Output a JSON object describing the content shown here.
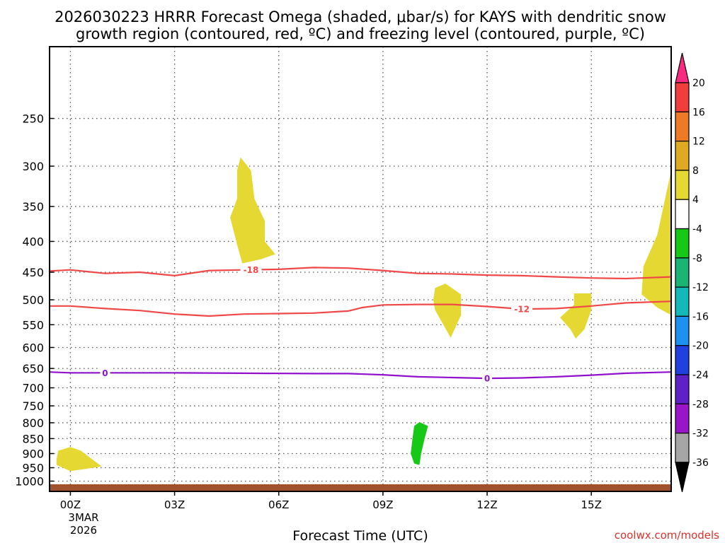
{
  "chart_data": {
    "type": "time-height-contour",
    "title_line1": "2026030223 HRRR Forecast Omega (shaded, μbar/s) for KAYS with dendritic snow",
    "title_line2": "growth region (contoured, red, ºC) and freezing level (contoured, purple, ºC)",
    "xlabel": "Forecast Time (UTC)",
    "x_range_hours": [
      -0.6,
      17.3
    ],
    "x_ticks": [
      {
        "hour": 0,
        "label": "00Z"
      },
      {
        "hour": 3,
        "label": "03Z"
      },
      {
        "hour": 6,
        "label": "06Z"
      },
      {
        "hour": 9,
        "label": "09Z"
      },
      {
        "hour": 12,
        "label": "12Z"
      },
      {
        "hour": 15,
        "label": "15Z"
      }
    ],
    "date_line1": "3MAR",
    "date_line2": "2026",
    "y_axis": "pressure (hPa), log scale",
    "y_range": [
      190,
      1040
    ],
    "y_ticks": [
      250,
      300,
      350,
      400,
      450,
      500,
      550,
      600,
      650,
      700,
      750,
      800,
      850,
      900,
      950,
      1000
    ],
    "watermark": "coolwx.com/models",
    "colorbar": {
      "labels": [
        "20",
        "16",
        "12",
        "8",
        "4",
        "-4",
        "-8",
        "-12",
        "-16",
        "-20",
        "-24",
        "-28",
        "-32",
        "-36"
      ],
      "colors": [
        "#f82a82",
        "#f23d3d",
        "#ed7a25",
        "#ddaa22",
        "#e6d832",
        "#ffffff",
        "#17c817",
        "#1ab574",
        "#14b8b8",
        "#1e90f0",
        "#2040e0",
        "#6020c8",
        "#9a14c8",
        "#a6a6a6",
        "#000000"
      ]
    },
    "series": [
      {
        "name": "-18 C (dendritic growth top)",
        "color": "#f04848",
        "label": "-18",
        "label_hour": 5.2,
        "points": [
          [
            -0.6,
            448
          ],
          [
            0,
            446
          ],
          [
            1,
            452
          ],
          [
            2,
            450
          ],
          [
            3,
            456
          ],
          [
            4,
            447
          ],
          [
            5,
            446
          ],
          [
            6,
            445
          ],
          [
            7,
            442
          ],
          [
            8,
            443
          ],
          [
            9,
            447
          ],
          [
            10,
            452
          ],
          [
            11,
            453
          ],
          [
            12,
            455
          ],
          [
            13,
            456
          ],
          [
            14,
            458
          ],
          [
            15,
            460
          ],
          [
            16,
            461
          ],
          [
            17.3,
            458
          ]
        ]
      },
      {
        "name": "-12 C (dendritic growth bottom)",
        "color": "#f04848",
        "label": "-12",
        "label_hour": 13.0,
        "points": [
          [
            -0.6,
            512
          ],
          [
            0,
            512
          ],
          [
            1,
            517
          ],
          [
            2,
            521
          ],
          [
            3,
            528
          ],
          [
            4,
            532
          ],
          [
            5,
            528
          ],
          [
            6,
            527
          ],
          [
            7,
            526
          ],
          [
            8,
            522
          ],
          [
            8.4,
            515
          ],
          [
            9,
            510
          ],
          [
            10,
            509
          ],
          [
            11,
            509
          ],
          [
            12,
            513
          ],
          [
            13,
            518
          ],
          [
            14,
            517
          ],
          [
            15,
            512
          ],
          [
            16,
            506
          ],
          [
            17.3,
            503
          ]
        ]
      },
      {
        "name": "0 C (freezing level)",
        "color": "#9010cc",
        "labels_hours": [
          1.0,
          12.0
        ],
        "label": "0",
        "points": [
          [
            -0.6,
            659
          ],
          [
            0,
            661
          ],
          [
            1,
            661
          ],
          [
            3,
            661
          ],
          [
            5,
            662
          ],
          [
            7,
            663
          ],
          [
            8,
            663
          ],
          [
            9,
            666
          ],
          [
            10,
            671
          ],
          [
            11,
            673
          ],
          [
            12,
            675
          ],
          [
            13,
            674
          ],
          [
            14,
            671
          ],
          [
            15,
            667
          ],
          [
            16,
            662
          ],
          [
            17.3,
            659
          ]
        ]
      }
    ],
    "shaded_regions": [
      {
        "band": "4 to 8",
        "color": "#e6d832",
        "polygon": [
          [
            4.9,
            290
          ],
          [
            5.2,
            305
          ],
          [
            5.3,
            340
          ],
          [
            5.6,
            370
          ],
          [
            5.6,
            400
          ],
          [
            5.9,
            420
          ],
          [
            5.5,
            428
          ],
          [
            4.95,
            435
          ],
          [
            4.8,
            405
          ],
          [
            4.6,
            365
          ],
          [
            4.8,
            340
          ],
          [
            4.8,
            305
          ]
        ]
      },
      {
        "band": "4 to 8",
        "color": "#e6d832",
        "polygon": [
          [
            10.5,
            478
          ],
          [
            10.8,
            470
          ],
          [
            11.25,
            490
          ],
          [
            11.25,
            530
          ],
          [
            10.95,
            578
          ],
          [
            10.5,
            520
          ],
          [
            10.45,
            500
          ]
        ]
      },
      {
        "band": "4 to 8",
        "color": "#e6d832",
        "polygon": [
          [
            14.5,
            488
          ],
          [
            15.0,
            488
          ],
          [
            15.0,
            520
          ],
          [
            14.8,
            560
          ],
          [
            14.55,
            580
          ],
          [
            14.4,
            560
          ],
          [
            14.1,
            535
          ],
          [
            14.5,
            510
          ]
        ]
      },
      {
        "band": "4 to 8",
        "color": "#e6d832",
        "polygon": [
          [
            17.3,
            305
          ],
          [
            16.9,
            390
          ],
          [
            16.5,
            440
          ],
          [
            16.45,
            490
          ],
          [
            16.9,
            515
          ],
          [
            17.3,
            530
          ]
        ]
      },
      {
        "band": "4 to 8",
        "color": "#e6d832",
        "polygon": [
          [
            -0.4,
            920
          ],
          [
            -0.35,
            890
          ],
          [
            0,
            878
          ],
          [
            0.3,
            890
          ],
          [
            0.9,
            945
          ],
          [
            0.4,
            955
          ],
          [
            0,
            962
          ],
          [
            -0.4,
            940
          ]
        ]
      },
      {
        "band": "-8 to -4",
        "color": "#17c817",
        "polygon": [
          [
            9.9,
            810
          ],
          [
            10.05,
            798
          ],
          [
            10.3,
            810
          ],
          [
            10.2,
            850
          ],
          [
            10.1,
            900
          ],
          [
            10.05,
            940
          ],
          [
            9.9,
            935
          ],
          [
            9.8,
            900
          ],
          [
            9.85,
            850
          ]
        ]
      }
    ],
    "terrain_band": {
      "color": "#a0522d",
      "pressure_top": 1012
    }
  }
}
